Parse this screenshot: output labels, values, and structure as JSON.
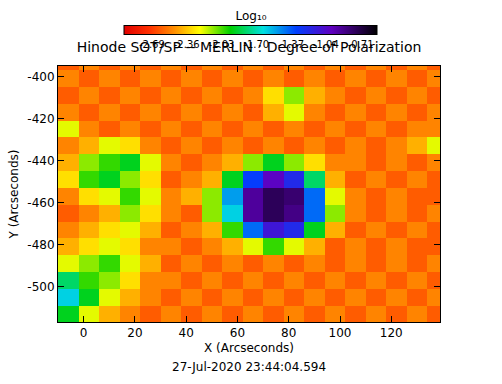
{
  "chart_data": {
    "type": "heatmap",
    "title": "Hinode SOT/SP -- MERLIN : Degree of Polarization",
    "x_label": "X (Arcseconds)",
    "y_label": "Y (Arcseconds)",
    "annotation": "27-Jul-2020 23:44:04.594",
    "colorbar_title": "Log₁₀",
    "x": [
      -6,
      2,
      10,
      18,
      26,
      34,
      42,
      50,
      58,
      66,
      74,
      82,
      90,
      98,
      106,
      114,
      122,
      130,
      138
    ],
    "y": [
      -513,
      -505,
      -497,
      -489,
      -481,
      -473,
      -465,
      -457,
      -449,
      -441,
      -433,
      -425,
      -417,
      -409,
      -401,
      -393
    ],
    "cells": [
      [
        -1.9,
        -2.2,
        -2.4,
        -2.5,
        -2.6,
        -2.5,
        -2.6,
        -2.5,
        -2.6,
        -2.5,
        -2.6,
        -2.5,
        -2.6,
        -2.5,
        -2.6,
        -2.5,
        -2.6,
        -2.5,
        -2.6
      ],
      [
        -1.6,
        -1.9,
        -2.2,
        -2.4,
        -2.5,
        -2.6,
        -2.5,
        -2.6,
        -2.5,
        -2.6,
        -2.5,
        -2.6,
        -2.5,
        -2.6,
        -2.5,
        -2.6,
        -2.5,
        -2.6,
        -2.5
      ],
      [
        -1.8,
        -2.0,
        -2.1,
        -2.3,
        -2.5,
        -2.5,
        -2.6,
        -2.5,
        -2.6,
        -2.5,
        -2.6,
        -2.5,
        -2.6,
        -2.5,
        -2.6,
        -2.5,
        -2.6,
        -2.5,
        -2.6
      ],
      [
        -2.2,
        -2.1,
        -2.0,
        -2.2,
        -2.4,
        -2.6,
        -2.5,
        -2.6,
        -2.5,
        -2.6,
        -2.5,
        -2.6,
        -2.5,
        -2.6,
        -2.5,
        -2.6,
        -2.5,
        -2.6,
        -2.5
      ],
      [
        -2.4,
        -2.3,
        -2.2,
        -2.3,
        -2.5,
        -2.5,
        -2.6,
        -2.5,
        -2.4,
        -2.2,
        -2.0,
        -2.2,
        -2.4,
        -2.6,
        -2.5,
        -2.6,
        -2.5,
        -2.6,
        -2.6
      ],
      [
        -2.5,
        -2.4,
        -2.3,
        -2.2,
        -2.4,
        -2.6,
        -2.5,
        -2.4,
        -2.0,
        -1.4,
        -1.1,
        -1.2,
        -1.9,
        -2.4,
        -2.6,
        -2.5,
        -2.6,
        -2.5,
        -2.6
      ],
      [
        -2.6,
        -2.5,
        -2.4,
        -2.1,
        -2.3,
        -2.5,
        -2.6,
        -2.1,
        -1.6,
        -0.9,
        -0.75,
        -0.85,
        -1.4,
        -2.1,
        -2.5,
        -2.6,
        -2.5,
        -2.6,
        -2.5
      ],
      [
        -2.5,
        -2.3,
        -2.2,
        -2.0,
        -2.2,
        -2.5,
        -2.4,
        -2.1,
        -1.5,
        -0.9,
        -0.75,
        -0.8,
        -1.4,
        -2.2,
        -2.5,
        -2.6,
        -2.5,
        -2.6,
        -2.6
      ],
      [
        -2.3,
        -2.0,
        -1.9,
        -2.1,
        -2.3,
        -2.6,
        -2.5,
        -2.4,
        -1.9,
        -1.3,
        -1.0,
        -1.2,
        -1.8,
        -2.4,
        -2.6,
        -2.5,
        -2.6,
        -2.5,
        -2.6
      ],
      [
        -2.4,
        -2.1,
        -2.0,
        -1.9,
        -2.2,
        -2.5,
        -2.6,
        -2.5,
        -2.4,
        -2.1,
        -1.9,
        -2.1,
        -2.3,
        -2.5,
        -2.5,
        -2.6,
        -2.5,
        -2.6,
        -2.5
      ],
      [
        -2.5,
        -2.4,
        -2.2,
        -2.3,
        -2.5,
        -2.6,
        -2.5,
        -2.6,
        -2.5,
        -2.6,
        -2.5,
        -2.6,
        -2.5,
        -2.6,
        -2.5,
        -2.6,
        -2.5,
        -2.4,
        -2.2
      ],
      [
        -2.2,
        -2.5,
        -2.6,
        -2.5,
        -2.6,
        -2.5,
        -2.6,
        -2.5,
        -2.6,
        -2.5,
        -2.6,
        -2.5,
        -2.6,
        -2.5,
        -2.6,
        -2.5,
        -2.6,
        -2.5,
        -2.5
      ],
      [
        -2.5,
        -2.6,
        -2.5,
        -2.6,
        -2.5,
        -2.6,
        -2.5,
        -2.6,
        -2.5,
        -2.6,
        -2.4,
        -2.2,
        -2.5,
        -2.6,
        -2.5,
        -2.6,
        -2.5,
        -2.6,
        -2.5
      ],
      [
        -2.6,
        -2.5,
        -2.6,
        -2.5,
        -2.6,
        -2.5,
        -2.6,
        -2.5,
        -2.6,
        -2.5,
        -2.3,
        -2.1,
        -2.4,
        -2.5,
        -2.6,
        -2.5,
        -2.6,
        -2.5,
        -2.6
      ],
      [
        -2.5,
        -2.6,
        -2.5,
        -2.6,
        -2.5,
        -2.6,
        -2.5,
        -2.6,
        -2.5,
        -2.6,
        -2.5,
        -2.6,
        -2.5,
        -2.6,
        -2.5,
        -2.6,
        -2.5,
        -2.6,
        -2.5
      ],
      [
        -2.6,
        -2.5,
        -2.6,
        -2.5,
        -2.6,
        -2.5,
        -2.6,
        -2.5,
        -2.6,
        -2.5,
        -2.6,
        -2.5,
        -2.6,
        -2.5,
        -2.6,
        -2.5,
        -2.6,
        -2.5,
        -2.6
      ]
    ],
    "xlim": [
      -10,
      139
    ],
    "ylim": [
      -517,
      -395
    ],
    "xticks": [
      0,
      20,
      40,
      60,
      80,
      100,
      120
    ],
    "yticks": [
      -500,
      -480,
      -460,
      -440,
      -420,
      -400
    ],
    "color_range": [
      -2.95,
      -0.55
    ],
    "color_ticks": [
      -2.69,
      -2.36,
      -2.03,
      {
        "value": -1.7,
        "label": "-1.70"
      },
      -1.37,
      -1.04,
      -0.71
    ]
  }
}
